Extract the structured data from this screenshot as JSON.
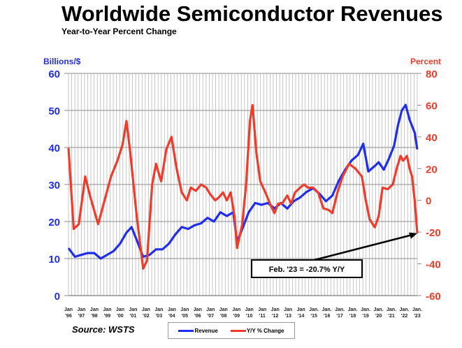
{
  "chart_data": {
    "type": "line",
    "title": "Worldwide Semiconductor Revenues",
    "subtitle": "Year-to-Year Percent Change",
    "y_left_label": "Billions/$",
    "y_right_label": "Percent",
    "ylim_left": [
      0,
      60
    ],
    "ylim_right": [
      -60,
      80
    ],
    "y_left_ticks": [
      "0",
      "10",
      "20",
      "30",
      "40",
      "50",
      "60"
    ],
    "y_right_ticks": [
      "-60",
      "-40",
      "-20",
      "0",
      "20",
      "40",
      "60",
      "80"
    ],
    "xlim": [
      1996,
      2023.2
    ],
    "x_ticks": [
      [
        "Jan",
        "'96"
      ],
      [
        "Jan",
        "'97"
      ],
      [
        "Jan",
        "'98"
      ],
      [
        "Jan",
        "'99"
      ],
      [
        "Jan",
        "'00"
      ],
      [
        "Jan",
        "'01"
      ],
      [
        "Jan",
        "'02"
      ],
      [
        "Jan",
        "'03"
      ],
      [
        "Jan",
        "'04"
      ],
      [
        "Jan",
        "'05"
      ],
      [
        "Jan",
        "'06"
      ],
      [
        "Jan",
        "'07"
      ],
      [
        "Jan",
        "'08"
      ],
      [
        "Jan",
        "'09"
      ],
      [
        "Jan",
        "'10"
      ],
      [
        "Jan",
        "'11"
      ],
      [
        "Jan",
        "'12"
      ],
      [
        "Jan",
        "'13"
      ],
      [
        "Jan",
        "'14"
      ],
      [
        "Jan.",
        "'15"
      ],
      [
        "Jan.",
        "'16"
      ],
      [
        "Jan.",
        "'17"
      ],
      [
        "Jan.",
        "'18"
      ],
      [
        "Jan.",
        "'19"
      ],
      [
        "Jan.",
        "'20"
      ],
      [
        "Jan.",
        "'21"
      ],
      [
        "Jan.",
        "'22"
      ],
      [
        "Jan.",
        "'23"
      ]
    ],
    "grid": true,
    "legend_position": "bottom-center",
    "series": [
      {
        "name": "Revenue",
        "axis": "left",
        "color": "#1f2df0",
        "x": [
          1996.0,
          1996.5,
          1997.0,
          1997.5,
          1998.0,
          1998.5,
          1999.0,
          1999.5,
          2000.0,
          2000.5,
          2000.9,
          2001.3,
          2001.8,
          2002.3,
          2002.8,
          2003.3,
          2003.8,
          2004.3,
          2004.8,
          2005.3,
          2005.8,
          2006.3,
          2006.8,
          2007.3,
          2007.8,
          2008.3,
          2008.8,
          2009.1,
          2009.5,
          2010.0,
          2010.5,
          2011.0,
          2011.5,
          2012.0,
          2012.5,
          2013.0,
          2013.5,
          2014.0,
          2014.5,
          2015.0,
          2015.5,
          2016.0,
          2016.5,
          2017.0,
          2017.5,
          2018.0,
          2018.5,
          2018.9,
          2019.3,
          2019.8,
          2020.1,
          2020.5,
          2020.9,
          2021.3,
          2021.6,
          2021.9,
          2022.2,
          2022.5,
          2022.9,
          2023.1
        ],
        "values": [
          12.8,
          10.5,
          11,
          11.5,
          11.5,
          10,
          11,
          12,
          14,
          17,
          18.5,
          15,
          10.5,
          11,
          12.5,
          12.5,
          14,
          16.5,
          18.5,
          18,
          19,
          19.5,
          21,
          20,
          22.5,
          21.5,
          22.5,
          14.5,
          18,
          22.5,
          25,
          24.5,
          25,
          23.5,
          25,
          23.5,
          25.5,
          26.5,
          28,
          29,
          27.5,
          25.5,
          27,
          31,
          34,
          36.5,
          38,
          41,
          33.5,
          35,
          36,
          34,
          37,
          40.5,
          46,
          50,
          51.5,
          47.5,
          44,
          39.5
        ]
      },
      {
        "name": "Y/Y % Change",
        "axis": "right",
        "color": "#f03a2a",
        "x": [
          1996.0,
          1996.4,
          1996.8,
          1997.3,
          1997.7,
          1998.3,
          1998.8,
          1999.3,
          1999.8,
          2000.2,
          2000.5,
          2000.8,
          2001.3,
          2001.8,
          2002.1,
          2002.5,
          2002.8,
          2003.2,
          2003.6,
          2004.0,
          2004.4,
          2004.8,
          2005.2,
          2005.5,
          2005.9,
          2006.3,
          2006.7,
          2007.0,
          2007.4,
          2007.7,
          2008.0,
          2008.3,
          2008.6,
          2008.9,
          2009.1,
          2009.5,
          2009.8,
          2010.1,
          2010.3,
          2010.6,
          2010.9,
          2011.3,
          2011.7,
          2012.0,
          2012.3,
          2012.6,
          2013.0,
          2013.3,
          2013.6,
          2014.0,
          2014.3,
          2014.6,
          2015.0,
          2015.4,
          2015.8,
          2016.2,
          2016.5,
          2016.9,
          2017.3,
          2017.8,
          2018.3,
          2018.8,
          2019.1,
          2019.4,
          2019.8,
          2020.1,
          2020.4,
          2020.8,
          2021.2,
          2021.5,
          2021.8,
          2022.0,
          2022.3,
          2022.5,
          2022.7,
          2022.9,
          2023.1
        ],
        "values": [
          33,
          -18,
          -15,
          15,
          2,
          -15,
          0,
          15,
          25,
          35,
          50,
          30,
          -10,
          -43,
          -38,
          10,
          23,
          12,
          32,
          40,
          20,
          5,
          0,
          8,
          6,
          10,
          8,
          4,
          0,
          2,
          5,
          0,
          5,
          -10,
          -30,
          -15,
          10,
          50,
          60,
          30,
          12,
          5,
          -3,
          -8,
          -2,
          -2,
          3,
          -2,
          5,
          8,
          10,
          8,
          8,
          5,
          -5,
          -6,
          -8,
          5,
          15,
          23,
          20,
          15,
          0,
          -12,
          -17,
          -10,
          8,
          7,
          10,
          20,
          28,
          25,
          28,
          20,
          15,
          0,
          -20.7
        ]
      }
    ],
    "annotation": {
      "text": "Feb. '23 = -20.7% Y/Y",
      "x": 2023.1,
      "y": -20.7
    },
    "source": "Source: WSTS"
  }
}
